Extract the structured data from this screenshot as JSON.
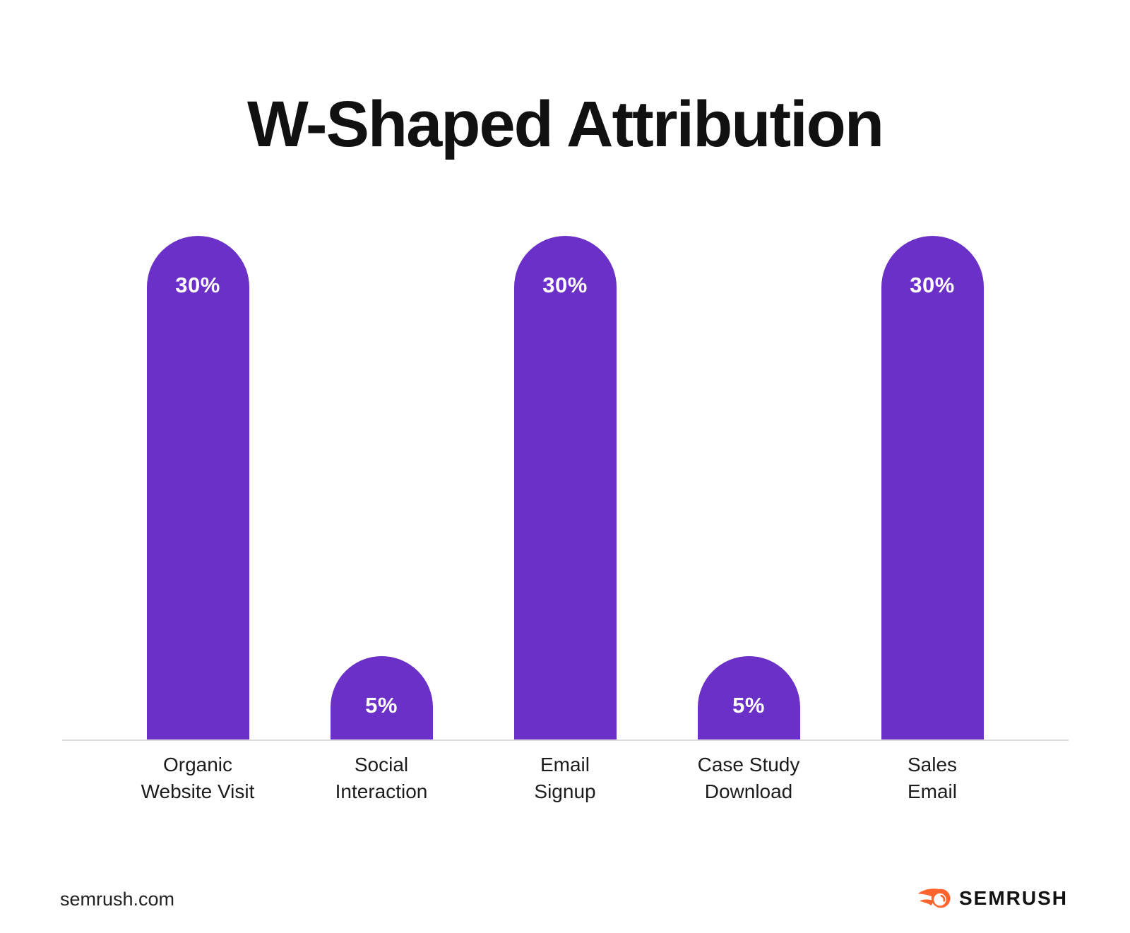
{
  "title": "W-Shaped Attribution",
  "chart_data": {
    "type": "bar",
    "title": "W-Shaped Attribution",
    "categories": [
      "Organic Website Visit",
      "Social Interaction",
      "Email Signup",
      "Case Study Download",
      "Sales Email"
    ],
    "categories_lines": [
      [
        "Organic",
        "Website Visit"
      ],
      [
        "Social",
        "Interaction"
      ],
      [
        "Email",
        "Signup"
      ],
      [
        "Case Study",
        "Download"
      ],
      [
        "Sales",
        "Email"
      ]
    ],
    "values": [
      30,
      5,
      30,
      5,
      30
    ],
    "value_labels": [
      "30%",
      "5%",
      "30%",
      "5%",
      "30%"
    ],
    "unit": "%",
    "ylim": [
      0,
      44
    ],
    "grid": false,
    "legend": false,
    "bar_color": "#6b30c7",
    "value_label_color": "#ffffff",
    "baseline_color": "#dfdfdf"
  },
  "footer": {
    "site": "semrush.com",
    "brand_name": "SEMRUSH",
    "brand_color": "#ff642d",
    "brand_text_color": "#121212"
  }
}
